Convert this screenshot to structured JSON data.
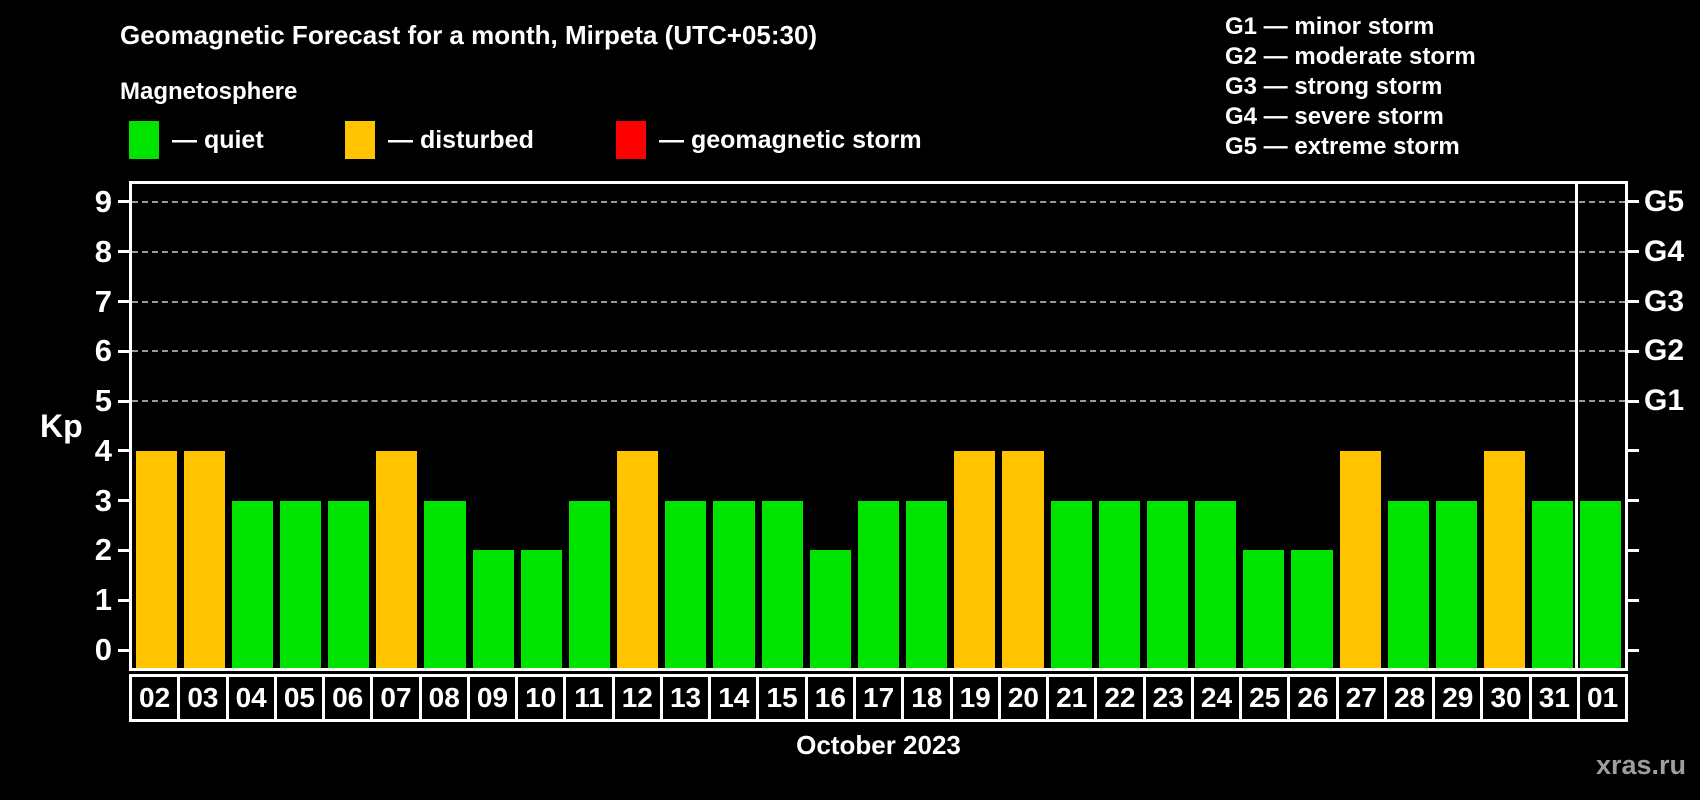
{
  "title": "Geomagnetic Forecast for a month, Mirpeta (UTC+05:30)",
  "subtitle": "Magnetosphere",
  "legend": {
    "items": [
      {
        "name": "quiet",
        "label": "— quiet",
        "color": "#00e400"
      },
      {
        "name": "disturbed",
        "label": "— disturbed",
        "color": "#ffc300"
      },
      {
        "name": "storm",
        "label": "— geomagnetic storm",
        "color": "#ff0000"
      }
    ]
  },
  "g_scale_legend": [
    "G1 — minor storm",
    "G2 — moderate storm",
    "G3 — strong storm",
    "G4 — severe storm",
    "G5 — extreme storm"
  ],
  "chart_data": {
    "type": "bar",
    "title": "Geomagnetic Forecast for a month, Mirpeta (UTC+05:30)",
    "xlabel": "October 2023",
    "ylabel": "Kp",
    "ylim": [
      0,
      9
    ],
    "grid": "dashed horizontal lines at Kp 5-9 only",
    "grid_kp_levels": [
      5,
      6,
      7,
      8,
      9
    ],
    "left_axis_ticks": [
      0,
      1,
      2,
      3,
      4,
      5,
      6,
      7,
      8,
      9
    ],
    "right_axis_labels": [
      {
        "label": "G1",
        "kp": 5
      },
      {
        "label": "G2",
        "kp": 6
      },
      {
        "label": "G3",
        "kp": 7
      },
      {
        "label": "G4",
        "kp": 8
      },
      {
        "label": "G5",
        "kp": 9
      }
    ],
    "categories": [
      "02",
      "03",
      "04",
      "05",
      "06",
      "07",
      "08",
      "09",
      "10",
      "11",
      "12",
      "13",
      "14",
      "15",
      "16",
      "17",
      "18",
      "19",
      "20",
      "21",
      "22",
      "23",
      "24",
      "25",
      "26",
      "27",
      "28",
      "29",
      "30",
      "31",
      "01"
    ],
    "values": [
      4,
      4,
      3,
      3,
      3,
      4,
      3,
      2,
      2,
      3,
      4,
      3,
      3,
      3,
      2,
      3,
      3,
      4,
      4,
      3,
      3,
      3,
      3,
      2,
      2,
      4,
      3,
      3,
      4,
      3,
      3
    ],
    "bar_states": [
      "disturbed",
      "disturbed",
      "quiet",
      "quiet",
      "quiet",
      "disturbed",
      "quiet",
      "quiet",
      "quiet",
      "quiet",
      "disturbed",
      "quiet",
      "quiet",
      "quiet",
      "quiet",
      "quiet",
      "quiet",
      "disturbed",
      "disturbed",
      "quiet",
      "quiet",
      "quiet",
      "quiet",
      "quiet",
      "quiet",
      "disturbed",
      "quiet",
      "quiet",
      "disturbed",
      "quiet",
      "quiet"
    ],
    "month_boundary_after_index": 29,
    "legend_position": "top"
  },
  "footer": {
    "month_label": "October 2023",
    "watermark": "xras.ru"
  },
  "colors": {
    "background": "#000000",
    "axis": "#ffffff",
    "grid": "#9a9a9a",
    "quiet": "#00e400",
    "disturbed": "#ffc300",
    "storm": "#ff0000",
    "watermark": "#9e9e9e"
  }
}
